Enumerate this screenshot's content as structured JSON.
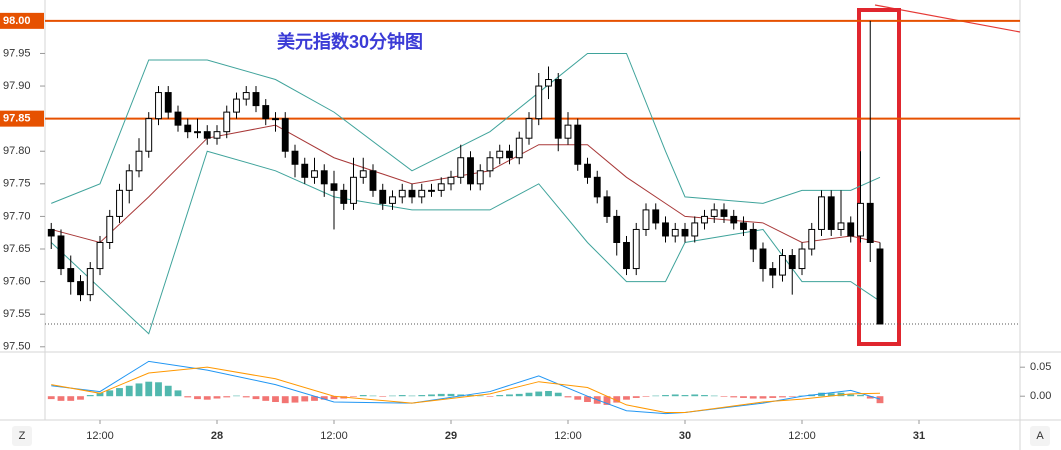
{
  "chart_data": [
    {
      "type": "candlestick",
      "title": "美元指数30分钟图",
      "x": [
        7,
        8,
        9,
        10,
        11,
        12,
        13,
        14,
        15,
        16,
        17,
        18,
        19,
        20,
        21,
        22,
        23,
        24,
        25,
        26,
        27,
        28,
        29,
        30,
        31,
        32,
        33,
        34,
        35,
        36,
        37,
        38,
        39,
        40,
        41,
        42,
        43,
        44,
        45,
        46,
        47,
        48,
        49,
        50,
        51,
        52,
        53,
        54,
        55,
        56,
        57,
        58,
        59,
        60,
        61,
        62,
        63,
        64,
        65,
        66,
        67,
        68,
        69,
        70,
        71,
        72,
        73,
        74,
        75,
        76,
        77,
        78,
        79,
        80,
        81,
        82,
        83,
        84,
        85,
        86,
        87,
        88,
        89,
        90,
        91,
        92
      ],
      "candles": [
        [
          97.68,
          97.69,
          97.65,
          97.67
        ],
        [
          97.67,
          97.68,
          97.61,
          97.62
        ],
        [
          97.62,
          97.64,
          97.58,
          97.6
        ],
        [
          97.6,
          97.61,
          97.57,
          97.58
        ],
        [
          97.58,
          97.63,
          97.57,
          97.62
        ],
        [
          97.62,
          97.67,
          97.61,
          97.66
        ],
        [
          97.66,
          97.71,
          97.65,
          97.7
        ],
        [
          97.7,
          97.75,
          97.69,
          97.74
        ],
        [
          97.74,
          97.78,
          97.72,
          97.77
        ],
        [
          97.77,
          97.82,
          97.76,
          97.8
        ],
        [
          97.8,
          97.86,
          97.79,
          97.85
        ],
        [
          97.85,
          97.9,
          97.84,
          97.89
        ],
        [
          97.89,
          97.9,
          97.85,
          97.86
        ],
        [
          97.86,
          97.87,
          97.83,
          97.84
        ],
        [
          97.84,
          97.85,
          97.82,
          97.83
        ],
        [
          97.83,
          97.85,
          97.82,
          97.83
        ],
        [
          97.83,
          97.84,
          97.81,
          97.82
        ],
        [
          97.82,
          97.84,
          97.81,
          97.83
        ],
        [
          97.83,
          97.87,
          97.82,
          97.86
        ],
        [
          97.86,
          97.89,
          97.85,
          97.88
        ],
        [
          97.88,
          97.9,
          97.87,
          97.89
        ],
        [
          97.89,
          97.9,
          97.86,
          97.87
        ],
        [
          97.87,
          97.88,
          97.84,
          97.85
        ],
        [
          97.85,
          97.86,
          97.83,
          97.85
        ],
        [
          97.85,
          97.86,
          97.79,
          97.8
        ],
        [
          97.8,
          97.81,
          97.76,
          97.78
        ],
        [
          97.78,
          97.79,
          97.75,
          97.76
        ],
        [
          97.76,
          97.79,
          97.75,
          97.77
        ],
        [
          97.77,
          97.78,
          97.73,
          97.75
        ],
        [
          97.75,
          97.77,
          97.68,
          97.74
        ],
        [
          97.74,
          97.75,
          97.71,
          97.72
        ],
        [
          97.72,
          97.79,
          97.71,
          97.76
        ],
        [
          97.76,
          97.79,
          97.75,
          97.77
        ],
        [
          97.77,
          97.78,
          97.73,
          97.74
        ],
        [
          97.74,
          97.75,
          97.71,
          97.72
        ],
        [
          97.72,
          97.74,
          97.71,
          97.73
        ],
        [
          97.73,
          97.75,
          97.72,
          97.74
        ],
        [
          97.74,
          97.75,
          97.72,
          97.73
        ],
        [
          97.73,
          97.75,
          97.72,
          97.74
        ],
        [
          97.74,
          97.75,
          97.73,
          97.74
        ],
        [
          97.74,
          97.76,
          97.73,
          97.75
        ],
        [
          97.75,
          97.77,
          97.74,
          97.76
        ],
        [
          97.76,
          97.81,
          97.75,
          97.79
        ],
        [
          97.79,
          97.8,
          97.74,
          97.75
        ],
        [
          97.75,
          97.78,
          97.74,
          97.77
        ],
        [
          97.77,
          97.8,
          97.76,
          97.79
        ],
        [
          97.79,
          97.81,
          97.78,
          97.8
        ],
        [
          97.8,
          97.81,
          97.78,
          97.79
        ],
        [
          97.79,
          97.83,
          97.78,
          97.82
        ],
        [
          97.82,
          97.86,
          97.81,
          97.85
        ],
        [
          97.85,
          97.92,
          97.84,
          97.9
        ],
        [
          97.9,
          97.93,
          97.88,
          97.91
        ],
        [
          97.91,
          97.92,
          97.8,
          97.82
        ],
        [
          97.82,
          97.86,
          97.81,
          97.84
        ],
        [
          97.84,
          97.85,
          97.77,
          97.78
        ],
        [
          97.78,
          97.79,
          97.75,
          97.76
        ],
        [
          97.76,
          97.77,
          97.72,
          97.73
        ],
        [
          97.73,
          97.74,
          97.69,
          97.7
        ],
        [
          97.7,
          97.71,
          97.64,
          97.66
        ],
        [
          97.66,
          97.67,
          97.61,
          97.62
        ],
        [
          97.62,
          97.69,
          97.61,
          97.68
        ],
        [
          97.68,
          97.72,
          97.67,
          97.71
        ],
        [
          97.71,
          97.72,
          97.68,
          97.69
        ],
        [
          97.69,
          97.7,
          97.66,
          97.67
        ],
        [
          97.67,
          97.69,
          97.66,
          97.68
        ],
        [
          97.68,
          97.69,
          97.66,
          97.67
        ],
        [
          97.67,
          97.7,
          97.66,
          97.69
        ],
        [
          97.69,
          97.71,
          97.68,
          97.7
        ],
        [
          97.7,
          97.72,
          97.69,
          97.71
        ],
        [
          97.71,
          97.72,
          97.69,
          97.7
        ],
        [
          97.7,
          97.71,
          97.68,
          97.69
        ],
        [
          97.69,
          97.7,
          97.67,
          97.68
        ],
        [
          97.68,
          97.69,
          97.63,
          97.65
        ],
        [
          97.65,
          97.66,
          97.6,
          97.62
        ],
        [
          97.62,
          97.63,
          97.59,
          97.61
        ],
        [
          97.61,
          97.65,
          97.6,
          97.64
        ],
        [
          97.64,
          97.65,
          97.58,
          97.62
        ],
        [
          97.62,
          97.66,
          97.61,
          97.65
        ],
        [
          97.65,
          97.69,
          97.64,
          97.68
        ],
        [
          97.68,
          97.74,
          97.67,
          97.73
        ],
        [
          97.73,
          97.74,
          97.67,
          97.68
        ],
        [
          97.68,
          97.74,
          97.67,
          97.69
        ],
        [
          97.69,
          97.7,
          97.66,
          97.67
        ],
        [
          97.67,
          97.8,
          97.66,
          97.72
        ],
        [
          97.72,
          98.0,
          97.63,
          97.66
        ],
        [
          97.65,
          97.66,
          97.535,
          97.535
        ]
      ],
      "up_color": "#ffffff",
      "down_color": "#000000",
      "outline_color": "#000000",
      "series": [
        {
          "color": "#3fa39b",
          "x": [
            7,
            12,
            17,
            23,
            30,
            36,
            44,
            52,
            57,
            62,
            66,
            70,
            72,
            80,
            84,
            89,
            92
          ],
          "values": [
            97.72,
            97.75,
            97.94,
            97.94,
            97.91,
            97.86,
            97.77,
            97.83,
            97.89,
            97.95,
            97.95,
            97.8,
            97.73,
            97.72,
            97.74,
            97.74,
            97.76
          ]
        },
        {
          "color": "#a83838",
          "x": [
            7,
            12,
            17,
            23,
            30,
            36,
            44,
            52,
            57,
            62,
            66,
            70,
            72,
            80,
            84,
            89,
            92
          ],
          "values": [
            97.68,
            97.66,
            97.73,
            97.82,
            97.84,
            97.79,
            97.75,
            97.77,
            97.81,
            97.81,
            97.76,
            97.72,
            97.7,
            97.69,
            97.66,
            97.67,
            97.66
          ]
        },
        {
          "color": "#3fa39b",
          "x": [
            7,
            12,
            17,
            23,
            30,
            36,
            44,
            52,
            57,
            62,
            66,
            70,
            72,
            80,
            84,
            89,
            92
          ],
          "values": [
            97.66,
            97.59,
            97.52,
            97.8,
            97.77,
            97.73,
            97.71,
            97.71,
            97.75,
            97.66,
            97.6,
            97.6,
            97.66,
            97.68,
            97.6,
            97.6,
            97.57
          ]
        }
      ],
      "hlines": [
        {
          "value": 98.0,
          "label": "98.00"
        },
        {
          "value": 97.85,
          "label": "97.85"
        }
      ],
      "hline_color": "#e65100",
      "xlim": [
        6.36,
        106.36
      ],
      "ylim": [
        97.492,
        98.032
      ],
      "xticks": [
        {
          "value": 12,
          "label": "12:00"
        },
        {
          "value": 24,
          "label": "28"
        },
        {
          "value": 36,
          "label": "12:00"
        },
        {
          "value": 48,
          "label": "29"
        },
        {
          "value": 60,
          "label": "12:00"
        },
        {
          "value": 72,
          "label": "30"
        },
        {
          "value": 84,
          "label": "12:00"
        },
        {
          "value": 96,
          "label": "31"
        }
      ],
      "yticks": [
        {
          "value": 97.5,
          "label": "97.50"
        },
        {
          "value": 97.55,
          "label": "97.55"
        },
        {
          "value": 97.6,
          "label": "97.60"
        },
        {
          "value": 97.65,
          "label": "97.65"
        },
        {
          "value": 97.7,
          "label": "97.70"
        },
        {
          "value": 97.75,
          "label": "97.75"
        },
        {
          "value": 97.8,
          "label": "97.80"
        },
        {
          "value": 97.9,
          "label": "97.90"
        },
        {
          "value": 97.95,
          "label": "97.95"
        }
      ]
    },
    {
      "type": "macd",
      "x": [
        7,
        8,
        9,
        10,
        11,
        12,
        13,
        14,
        15,
        16,
        17,
        18,
        19,
        20,
        21,
        22,
        23,
        24,
        25,
        26,
        27,
        28,
        29,
        30,
        31,
        32,
        33,
        34,
        35,
        36,
        37,
        38,
        39,
        40,
        41,
        42,
        43,
        44,
        45,
        46,
        47,
        48,
        49,
        50,
        51,
        52,
        53,
        54,
        55,
        56,
        57,
        58,
        59,
        60,
        61,
        62,
        63,
        64,
        65,
        66,
        67,
        68,
        69,
        70,
        71,
        72,
        73,
        74,
        75,
        76,
        77,
        78,
        79,
        80,
        81,
        82,
        83,
        84,
        85,
        86,
        87,
        88,
        89,
        90,
        91,
        92
      ],
      "histogram": [
        -0.005,
        -0.008,
        -0.008,
        -0.006,
        0.002,
        0.006,
        0.01,
        0.014,
        0.018,
        0.022,
        0.025,
        0.024,
        0.018,
        0.01,
        -0.002,
        -0.005,
        -0.006,
        -0.004,
        -0.002,
        0.001,
        -0.002,
        -0.005,
        -0.008,
        -0.01,
        -0.012,
        -0.011,
        -0.009,
        -0.008,
        -0.006,
        -0.005,
        -0.004,
        -0.001,
        0.002,
        0.001,
        -0.001,
        0.001,
        0.002,
        0.001,
        0.002,
        0.003,
        0.004,
        0.004,
        0.003,
        0.002,
        0.001,
        -0.001,
        0.002,
        0.003,
        0.004,
        0.006,
        0.008,
        0.009,
        0.006,
        -0.002,
        -0.006,
        -0.01,
        -0.013,
        -0.015,
        -0.011,
        -0.006,
        -0.003,
        -0.001,
        0.001,
        0.002,
        0.003,
        0.002,
        0.003,
        0.002,
        0.001,
        -0.001,
        -0.002,
        -0.003,
        -0.004,
        -0.004,
        -0.003,
        -0.002,
        -0.001,
        0.001,
        0.003,
        0.006,
        0.005,
        0.006,
        0.003,
        0.002,
        -0.004,
        -0.012
      ],
      "positive_color": "#26a69a",
      "negative_color": "#ef5350",
      "series": [
        {
          "color": "#2196f3",
          "x": [
            7,
            12,
            17,
            23,
            30,
            36,
            44,
            52,
            57,
            62,
            66,
            70,
            72,
            80,
            84,
            89,
            92
          ],
          "values": [
            0.018,
            0.008,
            0.06,
            0.045,
            0.02,
            -0.01,
            -0.012,
            0.008,
            0.035,
            0.0,
            -0.025,
            -0.03,
            -0.028,
            -0.012,
            0.0,
            0.01,
            -0.005
          ]
        },
        {
          "color": "#ff9800",
          "x": [
            7,
            12,
            17,
            23,
            30,
            36,
            44,
            52,
            57,
            62,
            66,
            70,
            72,
            80,
            84,
            89,
            92
          ],
          "values": [
            0.02,
            0.005,
            0.04,
            0.05,
            0.03,
            0.0,
            -0.012,
            0.004,
            0.025,
            0.015,
            -0.015,
            -0.028,
            -0.028,
            -0.01,
            -0.005,
            0.004,
            0.005
          ]
        }
      ],
      "xlim": [
        6.36,
        106.36
      ],
      "ylim": [
        -0.041,
        0.071
      ],
      "yticks": [
        0.05,
        {
          "value": 0,
          "label": "0.00"
        }
      ]
    }
  ],
  "ui": {
    "left_button": "Z",
    "right_button": "A"
  }
}
